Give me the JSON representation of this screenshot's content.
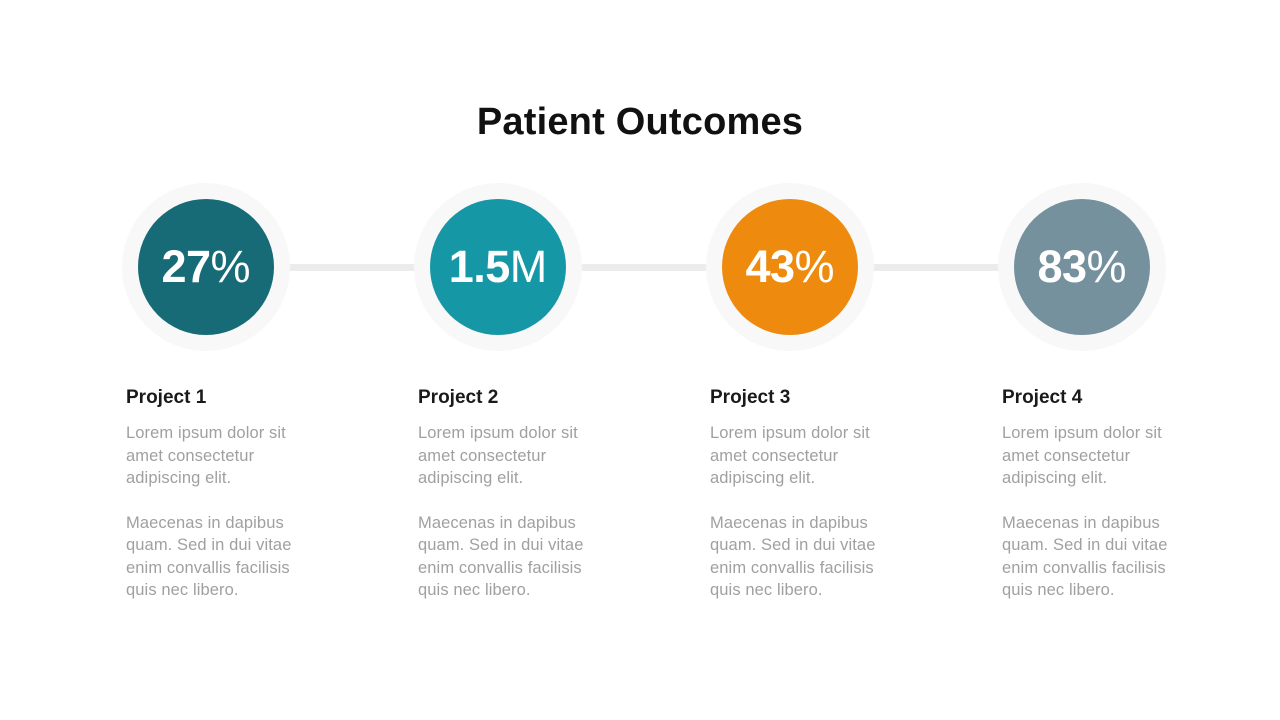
{
  "title": "Patient Outcomes",
  "colors": {
    "background": "#ffffff",
    "connector_line": "#ececec",
    "circle_halo": "#f8f8f8",
    "stat_text": "#ffffff",
    "heading_text": "#1a1a1a",
    "body_text": "#9fa0a0"
  },
  "milestones": [
    {
      "value": "27",
      "suffix": "%",
      "color": "#176b77",
      "label": "Project 1",
      "para1": "Lorem ipsum dolor sit amet consectetur adipiscing elit.",
      "para2": "Maecenas in dapibus quam. Sed in dui vitae enim convallis facilisis quis nec libero."
    },
    {
      "value": "1.5",
      "suffix": "M",
      "color": "#1697a6",
      "label": "Project 2",
      "para1": "Lorem ipsum dolor sit amet consectetur adipiscing elit.",
      "para2": "Maecenas in dapibus quam. Sed in dui vitae enim convallis facilisis quis nec libero."
    },
    {
      "value": "43",
      "suffix": "%",
      "color": "#ee8a0d",
      "label": "Project 3",
      "para1": "Lorem ipsum dolor sit amet consectetur adipiscing elit.",
      "para2": "Maecenas in dapibus quam. Sed in dui vitae enim convallis facilisis quis nec libero."
    },
    {
      "value": "83",
      "suffix": "%",
      "color": "#75919e",
      "label": "Project 4",
      "para1": "Lorem ipsum dolor sit amet consectetur adipiscing elit.",
      "para2": "Maecenas in dapibus quam. Sed in dui vitae enim convallis facilisis quis nec libero."
    }
  ]
}
